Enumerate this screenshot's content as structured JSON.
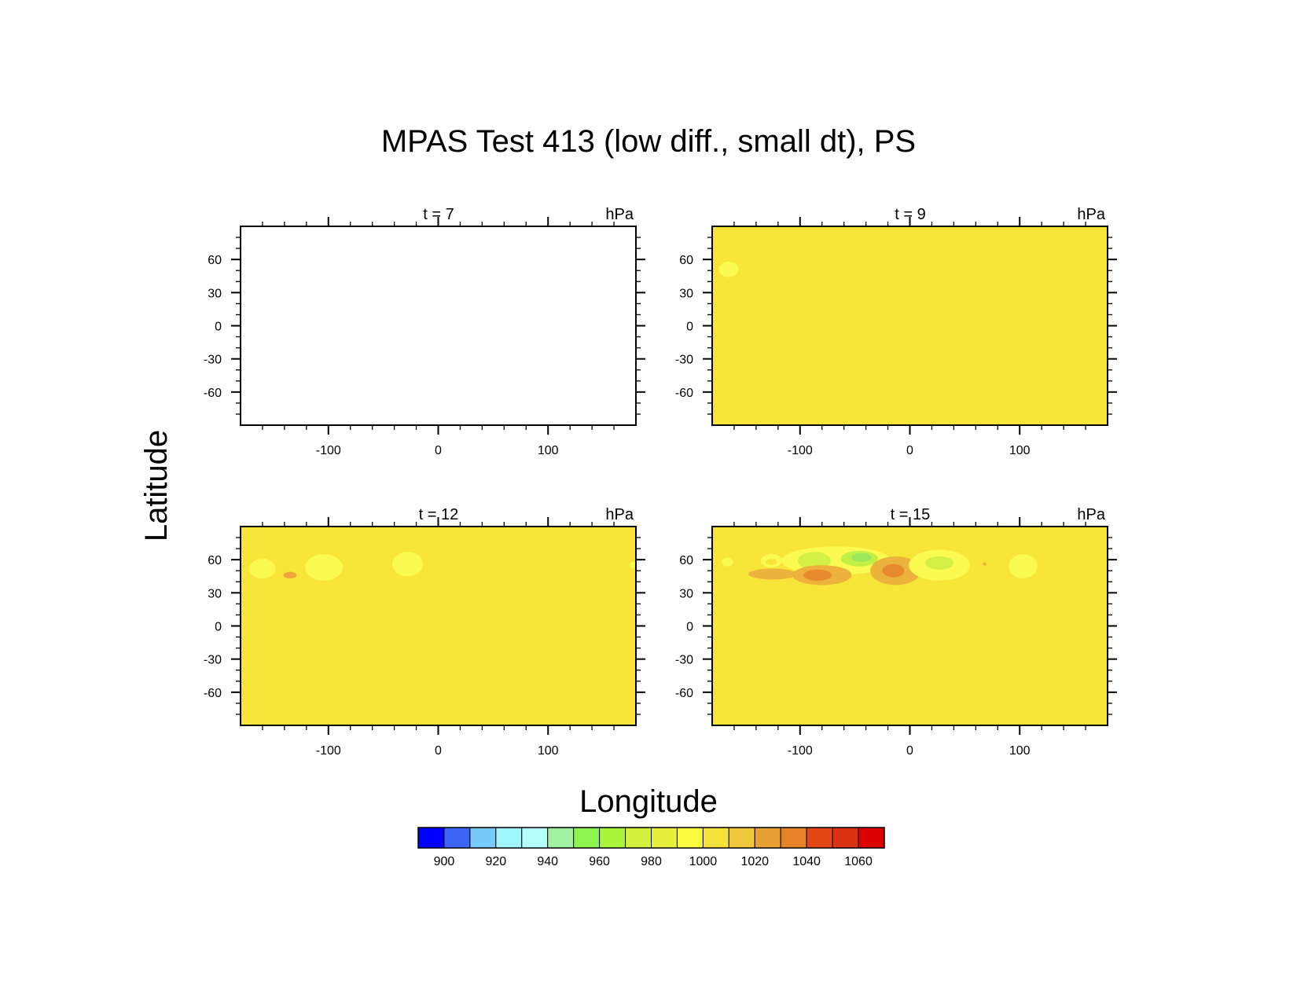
{
  "figure": {
    "title": "MPAS Test 413 (low diff., small dt), PS",
    "ylabel": "Latitude",
    "xlabel": "Longitude"
  },
  "chart_data": [
    {
      "type": "heatmap",
      "left_label": "t = 7",
      "right_label": "hPa",
      "xlim": [
        -180,
        180
      ],
      "ylim": [
        -90,
        90
      ],
      "x_ticks": [
        -100,
        0,
        100
      ],
      "y_ticks": [
        -60,
        -30,
        0,
        30,
        60
      ],
      "x_tick_labels": [
        "-100",
        "0",
        "100"
      ],
      "y_tick_labels": [
        "-60",
        "-30",
        "0",
        "30",
        "60"
      ],
      "background_color": "#ffffff",
      "features": []
    },
    {
      "type": "heatmap",
      "left_label": "t = 9",
      "right_label": "hPa",
      "xlim": [
        -180,
        180
      ],
      "ylim": [
        -90,
        90
      ],
      "x_ticks": [
        -100,
        0,
        100
      ],
      "y_ticks": [
        -60,
        -30,
        0,
        30,
        60
      ],
      "x_tick_labels": [
        "-100",
        "0",
        "100"
      ],
      "y_tick_labels": [
        "-60",
        "-30",
        "0",
        "30",
        "60"
      ],
      "background_color": "#f7e639",
      "features": [
        {
          "lon": -165,
          "lat": 51,
          "rlon": 9,
          "rlat": 7,
          "color": "#fafa50"
        }
      ]
    },
    {
      "type": "heatmap",
      "left_label": "t = 12",
      "right_label": "hPa",
      "xlim": [
        -180,
        180
      ],
      "ylim": [
        -90,
        90
      ],
      "x_ticks": [
        -100,
        0,
        100
      ],
      "y_ticks": [
        -60,
        -30,
        0,
        30,
        60
      ],
      "x_tick_labels": [
        "-100",
        "0",
        "100"
      ],
      "y_tick_labels": [
        "-60",
        "-30",
        "0",
        "30",
        "60"
      ],
      "background_color": "#f7e639",
      "features": [
        {
          "lon": -160,
          "lat": 52,
          "rlon": 12,
          "rlat": 9,
          "color": "#fafa50"
        },
        {
          "lon": -135,
          "lat": 46,
          "rlon": 6,
          "rlat": 3,
          "color": "#eda63a"
        },
        {
          "lon": -104,
          "lat": 53,
          "rlon": 17,
          "rlat": 12,
          "color": "#fafa50"
        },
        {
          "lon": -28,
          "lat": 56,
          "rlon": 14,
          "rlat": 11,
          "color": "#fafa50"
        },
        {
          "lon": 177,
          "lat": 55,
          "rlon": 3,
          "rlat": 3,
          "color": "#fafa50"
        }
      ]
    },
    {
      "type": "heatmap",
      "left_label": "t = 15",
      "right_label": "hPa",
      "xlim": [
        -180,
        180
      ],
      "ylim": [
        -90,
        90
      ],
      "x_ticks": [
        -100,
        0,
        100
      ],
      "y_ticks": [
        -60,
        -30,
        0,
        30,
        60
      ],
      "x_tick_labels": [
        "-100",
        "0",
        "100"
      ],
      "y_tick_labels": [
        "-60",
        "-30",
        "0",
        "30",
        "60"
      ],
      "background_color": "#f7e639",
      "features": [
        {
          "lon": -166,
          "lat": 58,
          "rlon": 5,
          "rlat": 4,
          "color": "#fafa50"
        },
        {
          "lon": -126,
          "lat": 59,
          "rlon": 10,
          "rlat": 6,
          "color": "#fafa50"
        },
        {
          "lon": -126,
          "lat": 58,
          "rlon": 5,
          "rlat": 3,
          "color": "#f7e639"
        },
        {
          "lon": -125,
          "lat": 47,
          "rlon": 22,
          "rlat": 5,
          "color": "#edb23b"
        },
        {
          "lon": -67,
          "lat": 59,
          "rlon": 50,
          "rlat": 13,
          "color": "#fafa50"
        },
        {
          "lon": -87,
          "lat": 59,
          "rlon": 15,
          "rlat": 8,
          "color": "#d4f047"
        },
        {
          "lon": -46,
          "lat": 61,
          "rlon": 17,
          "rlat": 7,
          "color": "#c2f047"
        },
        {
          "lon": -44,
          "lat": 62,
          "rlon": 9,
          "rlat": 4,
          "color": "#9be85a"
        },
        {
          "lon": -80,
          "lat": 46,
          "rlon": 27,
          "rlat": 9,
          "color": "#edb23b"
        },
        {
          "lon": -84,
          "lat": 46,
          "rlon": 13,
          "rlat": 5,
          "color": "#e68a2d"
        },
        {
          "lon": -13,
          "lat": 50,
          "rlon": 23,
          "rlat": 13,
          "color": "#edb23b"
        },
        {
          "lon": -15,
          "lat": 50,
          "rlon": 10,
          "rlat": 6,
          "color": "#e68a2d"
        },
        {
          "lon": 27,
          "lat": 55,
          "rlon": 28,
          "rlat": 14,
          "color": "#fafa50"
        },
        {
          "lon": 27,
          "lat": 57,
          "rlon": 13,
          "rlat": 6,
          "color": "#d4f047"
        },
        {
          "lon": 68,
          "lat": 56,
          "rlon": 1.5,
          "rlat": 1.5,
          "color": "#edb23b"
        },
        {
          "lon": 103,
          "lat": 54,
          "rlon": 13,
          "rlat": 11,
          "color": "#fafa50"
        }
      ]
    }
  ],
  "colorbar": {
    "colors": [
      "#0000ff",
      "#3c64f5",
      "#78c8fa",
      "#a0f5ff",
      "#b4ffff",
      "#a0f0a0",
      "#8cf550",
      "#aaf53c",
      "#d2f03c",
      "#e6f03c",
      "#fafa3c",
      "#f5e13c",
      "#f0c83c",
      "#e6a032",
      "#e68228",
      "#e14614",
      "#dc3214",
      "#dc0000"
    ],
    "labels": [
      "900",
      "920",
      "940",
      "960",
      "980",
      "1000",
      "1020",
      "1040",
      "1060"
    ]
  }
}
